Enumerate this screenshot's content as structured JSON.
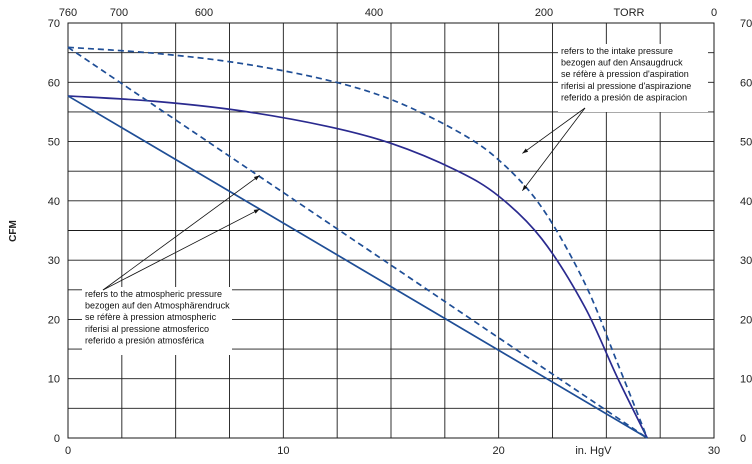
{
  "chart_data": {
    "type": "line",
    "ylabel": "CFM",
    "bottom_axis": {
      "label": "in. HgV",
      "range": [
        0,
        30
      ],
      "ticks": [
        0,
        10,
        20,
        30
      ],
      "tick_labels": [
        "0",
        "10",
        "20",
        "30"
      ]
    },
    "top_axis": {
      "label": "TORR",
      "range": [
        760,
        0
      ],
      "ticks": [
        760,
        700,
        600,
        400,
        200,
        0
      ],
      "tick_labels": [
        "760",
        "700",
        "600",
        "400",
        "200",
        "0"
      ]
    },
    "left_axis": {
      "range": [
        0,
        70
      ],
      "ticks": [
        0,
        10,
        20,
        30,
        40,
        50,
        60,
        70
      ],
      "tick_labels": [
        "0",
        "10",
        "20",
        "30",
        "40",
        "50",
        "60",
        "70"
      ]
    },
    "right_axis": {
      "range": [
        0,
        70
      ],
      "ticks": [
        0,
        10,
        20,
        30,
        40,
        50,
        60,
        70
      ],
      "tick_labels": [
        "0",
        "10",
        "20",
        "30",
        "40",
        "50",
        "60",
        "70"
      ]
    },
    "grid": true,
    "series": [
      {
        "style": "solid",
        "color": "#2a2a8f",
        "x": [
          0,
          4,
          8,
          12,
          15,
          18,
          20,
          22,
          24,
          25.5,
          26.9
        ],
        "y": [
          57.7,
          56.8,
          55.2,
          52.6,
          49.7,
          45.2,
          40.8,
          33.6,
          22.1,
          10.3,
          0
        ]
      },
      {
        "style": "dashed",
        "color": "#1f4e96",
        "x": [
          0,
          4,
          8,
          12,
          15,
          18,
          20,
          22,
          24,
          25.5,
          26.9
        ],
        "y": [
          65.9,
          64.9,
          63.2,
          60.4,
          57.1,
          51.9,
          46.9,
          38.9,
          26.1,
          12.8,
          0
        ]
      },
      {
        "style": "solid",
        "color": "#1f4e96",
        "x": [
          0,
          26.9
        ],
        "y": [
          57.7,
          0
        ]
      },
      {
        "style": "dashed",
        "color": "#1f4e96",
        "x": [
          0,
          26.9
        ],
        "y": [
          65.9,
          0
        ]
      }
    ],
    "annotations": [
      {
        "lines": [
          "refers to the intake pressure",
          "bezogen auf den Ansaugdruck",
          "se réfère à pression d'aspiration",
          "riferisi al pressione d'aspirazione",
          "referido a presión de aspiracion"
        ],
        "arrow_targets": [
          [
            21.1,
            48
          ],
          [
            21.1,
            41.7
          ]
        ]
      },
      {
        "lines": [
          "refers to the atmospheric pressure",
          "bezogen auf den Atmosphärendruck",
          "se réfère à pression atmospheric",
          "riferisi al pressione atmosferico",
          "referido a presión atmosférica"
        ],
        "arrow_targets": [
          [
            8.9,
            44.3
          ],
          [
            8.9,
            38.6
          ]
        ]
      }
    ]
  }
}
